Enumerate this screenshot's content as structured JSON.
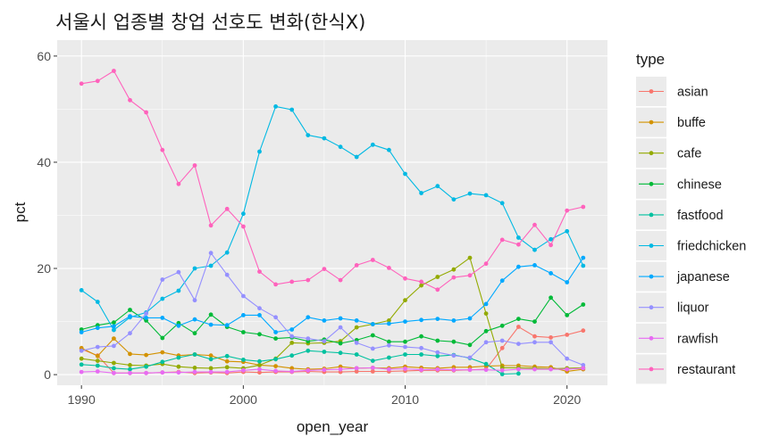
{
  "chart_data": {
    "type": "line",
    "title": "서울시 업종별 창업 선호도 변화(한식X)",
    "xlabel": "open_year",
    "ylabel": "pct",
    "xlim": [
      1988.5,
      2022.5
    ],
    "ylim": [
      -2,
      63
    ],
    "xticks": [
      1990,
      2000,
      2010,
      2020
    ],
    "yticks": [
      0,
      20,
      40,
      60
    ],
    "grid": true,
    "background": "#ebebeb",
    "legend": {
      "title": "type",
      "position": "right"
    },
    "x": [
      1990,
      1991,
      1992,
      1993,
      1994,
      1995,
      1996,
      1997,
      1998,
      1999,
      2000,
      2001,
      2002,
      2003,
      2004,
      2005,
      2006,
      2007,
      2008,
      2009,
      2010,
      2011,
      2012,
      2013,
      2014,
      2015,
      2016,
      2017,
      2018,
      2019,
      2020,
      2021
    ],
    "series": [
      {
        "name": "asian",
        "color": "#F8766D",
        "values": [
          4.8,
          3.6,
          0.3,
          0.3,
          0.3,
          0.4,
          0.5,
          0.3,
          0.4,
          0.3,
          0.5,
          0.4,
          0.5,
          0.5,
          0.6,
          0.5,
          0.5,
          0.6,
          0.6,
          0.6,
          0.7,
          0.8,
          0.8,
          0.8,
          0.9,
          1.0,
          5.0,
          9.0,
          7.2,
          7.0,
          7.5,
          8.3
        ]
      },
      {
        "name": "buffe",
        "color": "#D39200",
        "values": [
          5.0,
          3.5,
          6.8,
          3.9,
          3.7,
          4.2,
          3.6,
          3.8,
          3.6,
          2.5,
          2.4,
          1.8,
          1.6,
          1.2,
          1.0,
          1.1,
          1.5,
          1.2,
          1.3,
          1.2,
          1.5,
          1.3,
          1.2,
          1.4,
          1.4,
          1.6,
          1.7,
          1.7,
          1.5,
          1.4,
          0.6,
          1.0
        ]
      },
      {
        "name": "cafe",
        "color": "#93AA00",
        "values": [
          3.0,
          2.6,
          2.2,
          1.8,
          1.7,
          2.0,
          1.5,
          1.3,
          1.2,
          1.4,
          1.2,
          1.8,
          3.0,
          6.0,
          5.9,
          6.0,
          6.3,
          8.9,
          9.5,
          10.2,
          14.0,
          16.8,
          18.4,
          19.8,
          22.0,
          11.5,
          1.3,
          1.3,
          1.2,
          1.1,
          1.2,
          1.3
        ]
      },
      {
        "name": "chinese",
        "color": "#00BA38",
        "values": [
          8.5,
          9.3,
          9.8,
          12.2,
          10.2,
          6.9,
          9.7,
          7.8,
          11.3,
          9.0,
          8.0,
          7.6,
          6.8,
          7.0,
          6.3,
          6.6,
          5.9,
          6.5,
          7.4,
          6.2,
          6.2,
          7.2,
          6.4,
          6.2,
          5.6,
          8.2,
          9.2,
          10.5,
          10.0,
          14.5,
          11.2,
          13.2
        ]
      },
      {
        "name": "fastfood",
        "color": "#00C19F",
        "values": [
          1.9,
          1.7,
          1.2,
          1.0,
          1.5,
          2.4,
          3.2,
          3.8,
          2.9,
          3.5,
          2.8,
          2.5,
          2.9,
          3.6,
          4.5,
          4.3,
          4.1,
          3.8,
          2.6,
          3.2,
          3.8,
          3.8,
          3.5,
          3.7,
          3.1,
          2.0,
          0.1,
          0.2,
          null,
          null,
          null,
          null
        ]
      },
      {
        "name": "friedchicken",
        "color": "#00B9E3",
        "values": [
          15.9,
          13.7,
          8.4,
          10.8,
          11.7,
          14.3,
          15.8,
          20.0,
          20.5,
          23.0,
          30.3,
          42.0,
          50.5,
          49.9,
          45.1,
          44.5,
          42.9,
          41.0,
          43.3,
          42.3,
          37.8,
          34.2,
          35.5,
          33.0,
          34.1,
          33.8,
          32.3,
          25.8,
          23.5,
          25.5,
          27.0,
          20.5
        ]
      },
      {
        "name": "japanese",
        "color": "#00A9FF",
        "values": [
          8.0,
          8.8,
          9.1,
          11.0,
          10.7,
          10.7,
          9.2,
          10.4,
          9.4,
          9.3,
          11.2,
          11.2,
          8.0,
          8.5,
          10.8,
          10.2,
          10.6,
          10.2,
          9.5,
          9.6,
          10.0,
          10.3,
          10.5,
          10.2,
          10.6,
          13.3,
          17.7,
          20.3,
          20.6,
          19.1,
          17.4,
          22.0
        ]
      },
      {
        "name": "liquor",
        "color": "#9590FF",
        "values": [
          4.5,
          5.2,
          5.4,
          7.8,
          11.5,
          17.9,
          19.3,
          14.0,
          22.9,
          18.8,
          14.8,
          12.5,
          10.8,
          7.2,
          6.8,
          6.3,
          8.9,
          6.0,
          4.9,
          5.5,
          5.2,
          5.0,
          4.2,
          3.6,
          3.2,
          6.1,
          6.4,
          5.8,
          6.1,
          6.1,
          3.0,
          1.8
        ]
      },
      {
        "name": "rawfish",
        "color": "#E76BF3",
        "values": [
          0.5,
          0.6,
          0.3,
          0.3,
          0.3,
          0.4,
          0.4,
          0.5,
          0.5,
          0.5,
          0.8,
          1.0,
          0.7,
          0.6,
          0.8,
          0.9,
          1.0,
          1.2,
          1.3,
          1.0,
          1.1,
          0.9,
          1.0,
          0.9,
          0.9,
          0.9,
          0.8,
          1.0,
          1.0,
          1.0,
          1.0,
          1.2
        ]
      },
      {
        "name": "restaurant",
        "color": "#FF62BC",
        "values": [
          54.8,
          55.3,
          57.2,
          51.7,
          49.4,
          42.3,
          35.9,
          39.4,
          28.1,
          31.2,
          27.9,
          19.4,
          17.0,
          17.5,
          17.8,
          19.9,
          17.8,
          20.6,
          21.6,
          20.1,
          18.1,
          17.5,
          16.0,
          18.3,
          18.7,
          20.9,
          25.4,
          24.5,
          28.2,
          24.4,
          30.9,
          31.6
        ]
      }
    ]
  }
}
